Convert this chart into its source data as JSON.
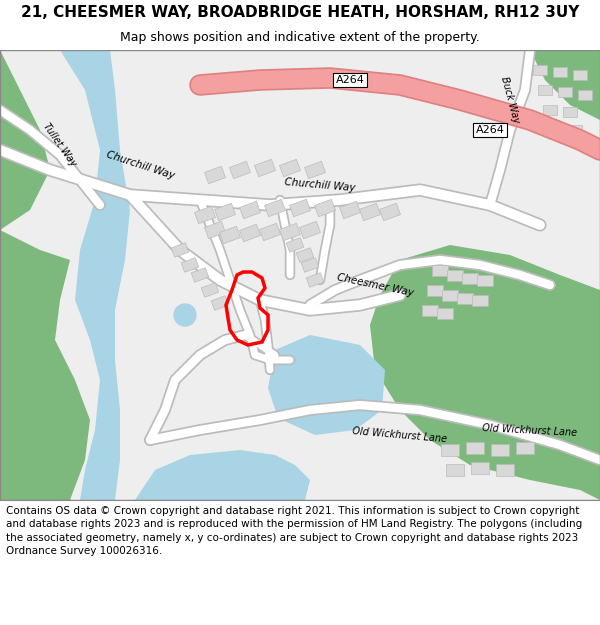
{
  "title_line1": "21, CHEESMER WAY, BROADBRIDGE HEATH, HORSHAM, RH12 3UY",
  "title_line2": "Map shows position and indicative extent of the property.",
  "footer_text": "Contains OS data © Crown copyright and database right 2021. This information is subject to Crown copyright and database rights 2023 and is reproduced with the permission of HM Land Registry. The polygons (including the associated geometry, namely x, y co-ordinates) are subject to Crown copyright and database rights 2023 Ordnance Survey 100026316.",
  "bg_color": "#ffffff",
  "map_bg": "#f5f5f5",
  "road_color": "#ffffff",
  "road_outline": "#cccccc",
  "building_color": "#dddddd",
  "building_outline": "#bbbbbb",
  "water_color": "#a8d4e6",
  "green_color": "#7db87d",
  "river_color": "#a8d4e6",
  "a264_color": "#f5a0a0",
  "highlight_color": "#ff0000",
  "title_fontsize": 11,
  "subtitle_fontsize": 9,
  "footer_fontsize": 7.5
}
